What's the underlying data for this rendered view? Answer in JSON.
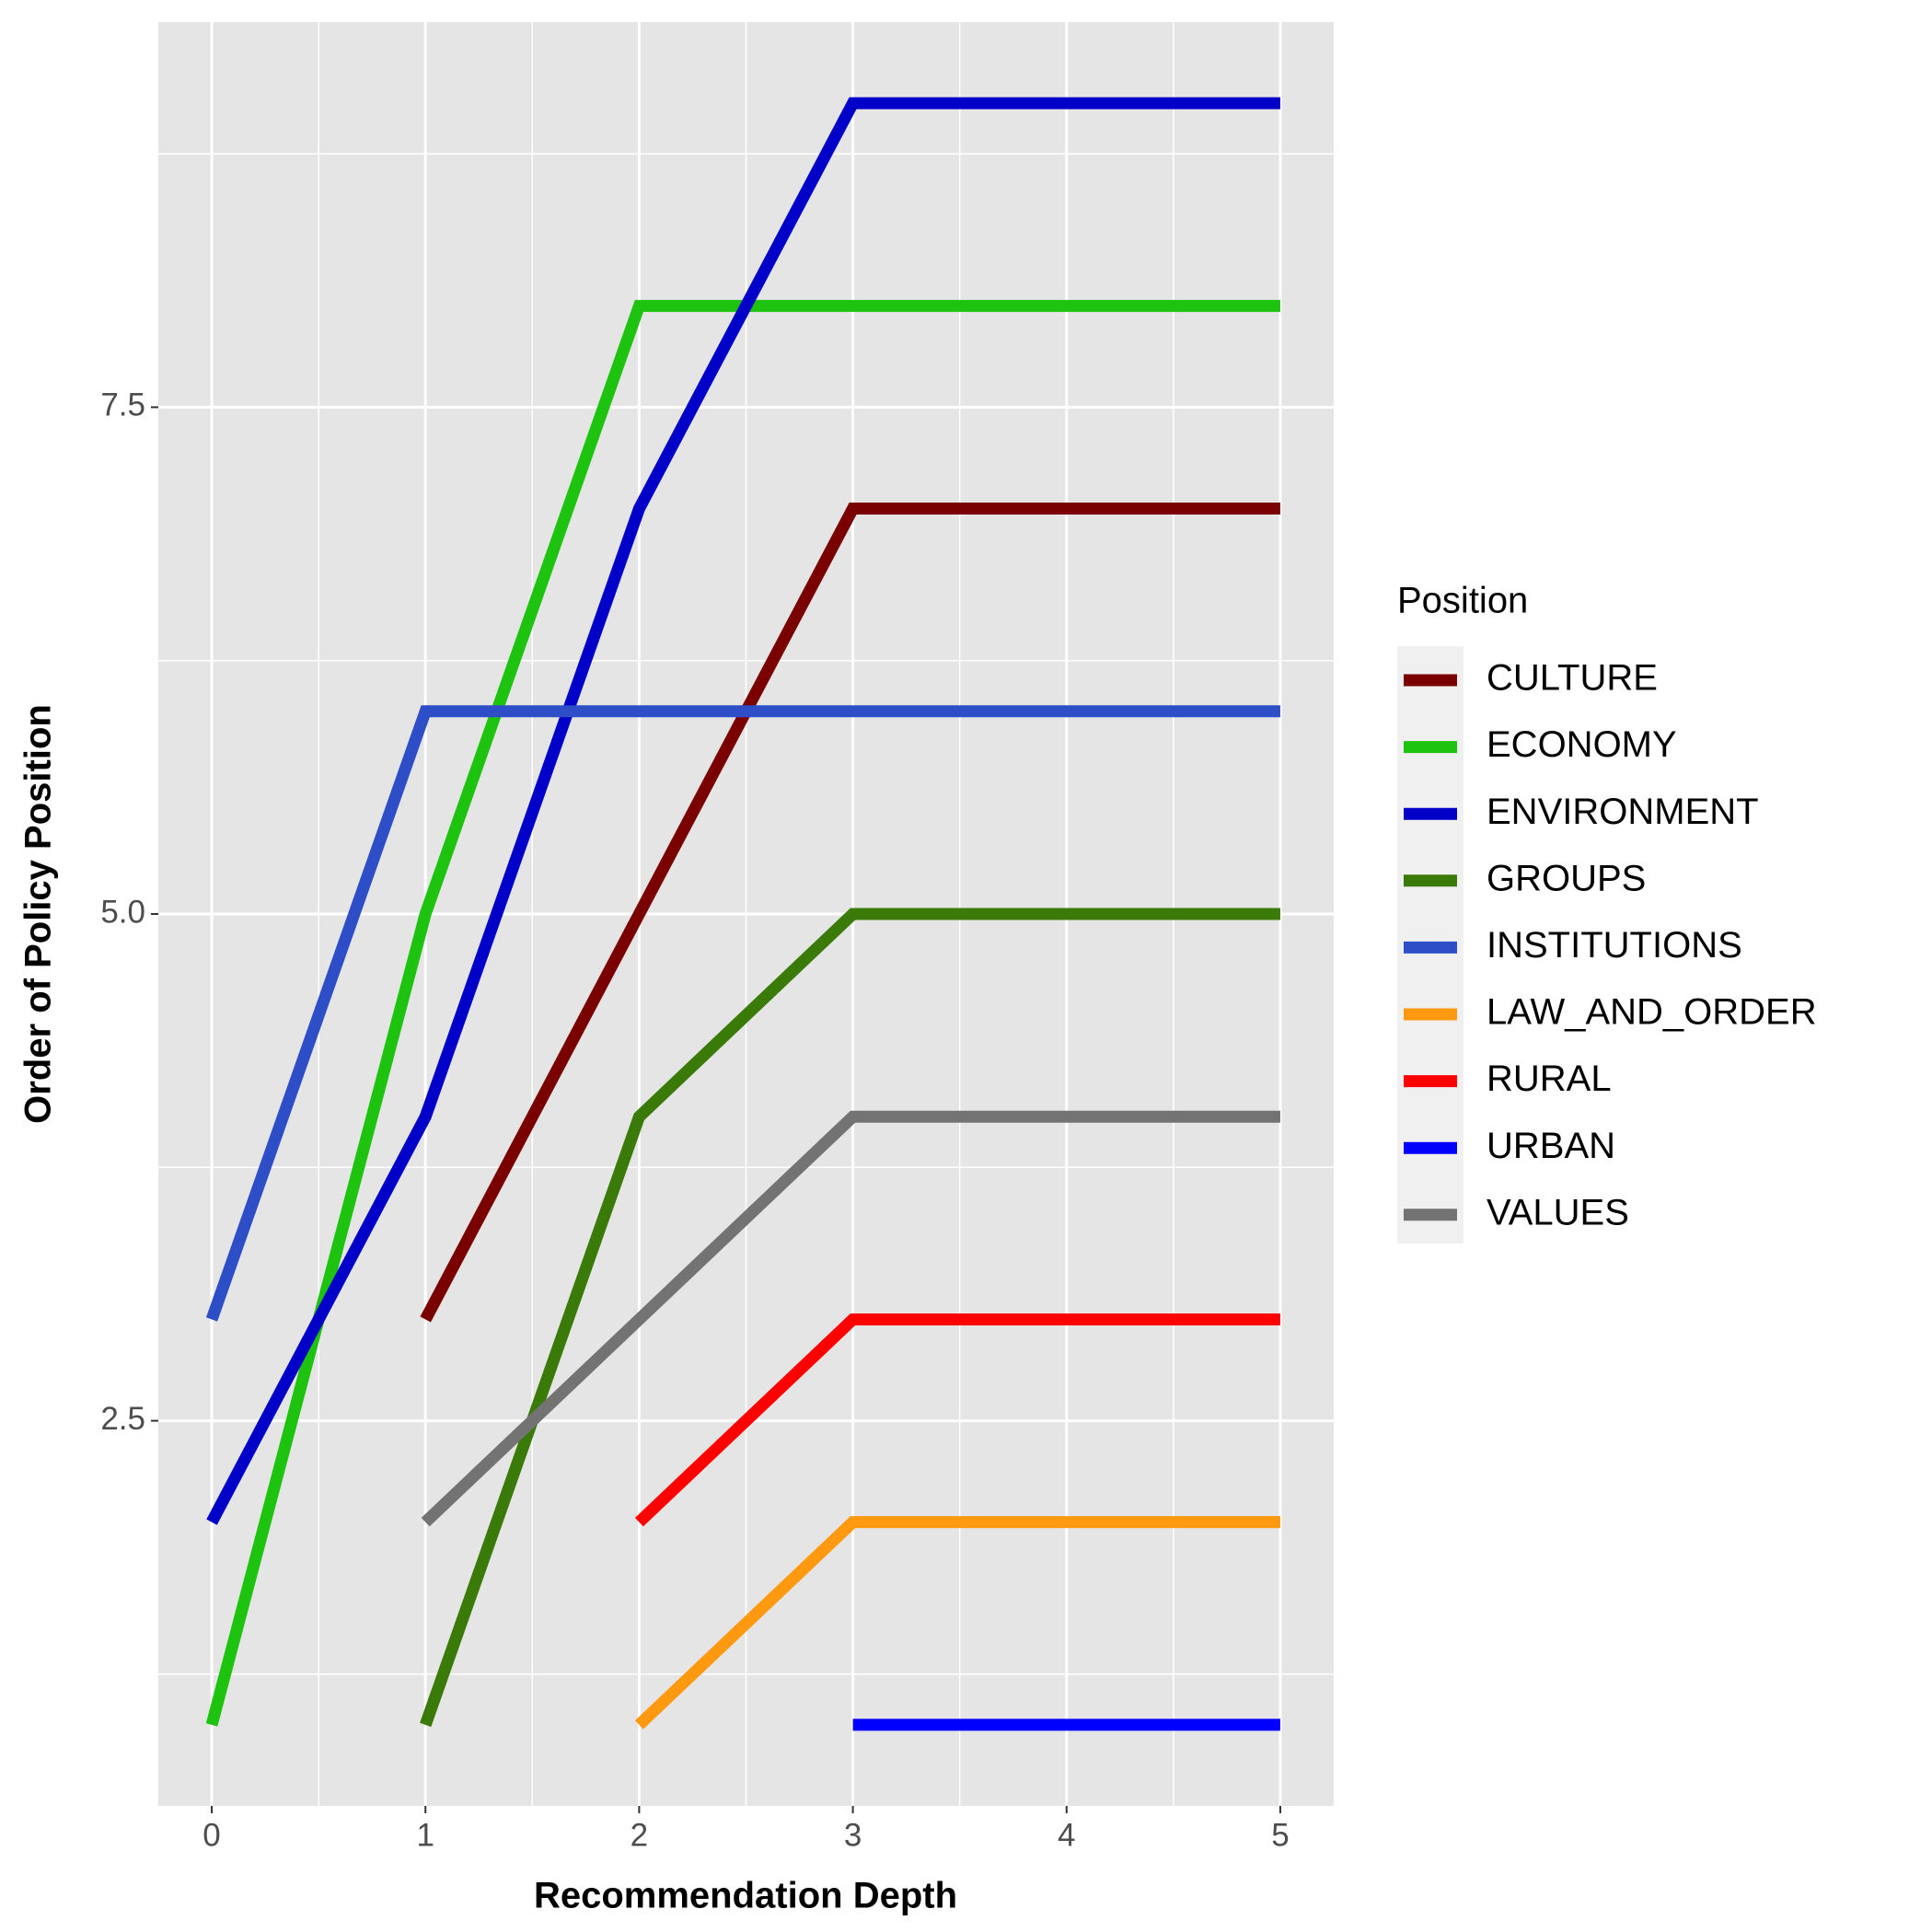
{
  "chart_data": {
    "type": "line",
    "x_label": "Recommendation Depth",
    "y_label": "Order of Policy Position",
    "x": [
      0,
      1,
      2,
      3,
      4,
      5
    ],
    "xlim": [
      -0.25,
      5.25
    ],
    "xticks": [
      0,
      1,
      2,
      3,
      4,
      5
    ],
    "ylim": [
      0.6,
      9.4
    ],
    "yticks": [
      {
        "value": 2.5,
        "label": "2.5"
      },
      {
        "value": 5,
        "label": "5.0"
      },
      {
        "value": 7.5,
        "label": "7.5"
      }
    ],
    "grid": true,
    "legend_title": "Position",
    "legend_position": "right",
    "series": [
      {
        "name": "CULTURE",
        "color": "#7a0000",
        "values": [
          null,
          3,
          5,
          7,
          7,
          7
        ]
      },
      {
        "name": "ECONOMY",
        "color": "#1ec30f",
        "values": [
          1,
          5,
          8,
          8,
          8,
          8
        ]
      },
      {
        "name": "ENVIRONMENT",
        "color": "#0000c8",
        "values": [
          2,
          4,
          7,
          9,
          9,
          9
        ]
      },
      {
        "name": "GROUPS",
        "color": "#3a7a08",
        "values": [
          null,
          1,
          4,
          5,
          5,
          5
        ]
      },
      {
        "name": "INSTITUTIONS",
        "color": "#2e4ec8",
        "values": [
          3,
          6,
          6,
          6,
          6,
          6
        ]
      },
      {
        "name": "LAW_AND_ORDER",
        "color": "#ff9910",
        "values": [
          null,
          null,
          1,
          2,
          2,
          2
        ]
      },
      {
        "name": "RURAL",
        "color": "#ff0000",
        "values": [
          null,
          null,
          2,
          3,
          3,
          3
        ]
      },
      {
        "name": "URBAN",
        "color": "#0000ff",
        "values": [
          null,
          null,
          null,
          1,
          1,
          1
        ]
      },
      {
        "name": "VALUES",
        "color": "#737373",
        "values": [
          null,
          2,
          3,
          4,
          4,
          4
        ]
      }
    ]
  }
}
